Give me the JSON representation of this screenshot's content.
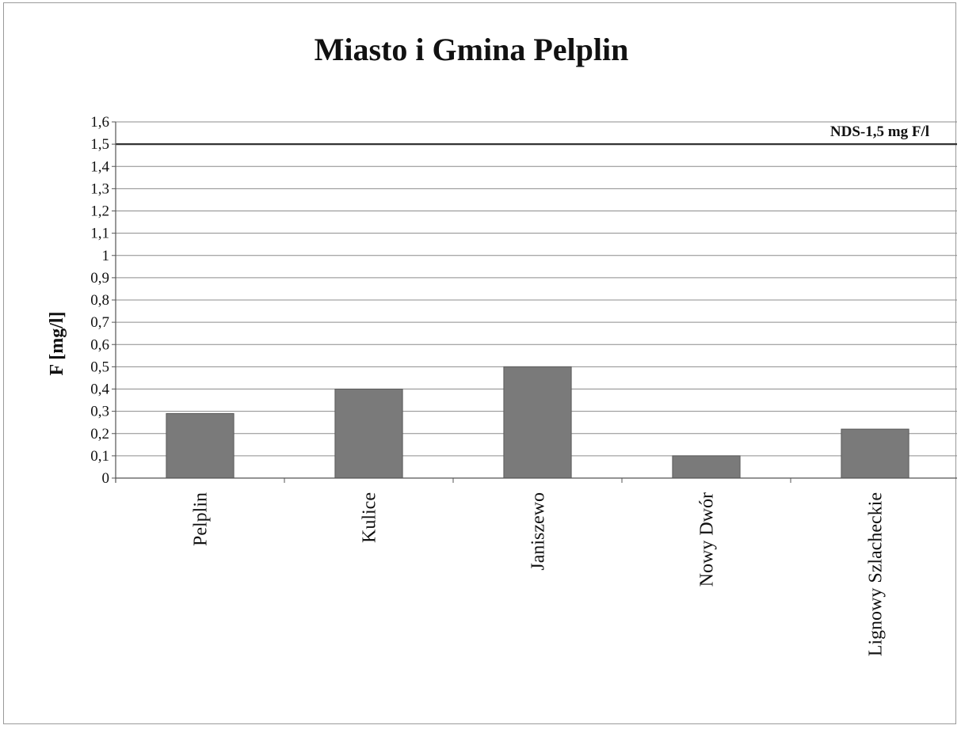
{
  "chart_data": {
    "type": "bar",
    "title": "Miasto i Gmina Pelplin",
    "ylabel": "F [mg/l]",
    "xlabel": "",
    "categories": [
      "Pelplin",
      "Kulice",
      "Janiszewo",
      "Nowy Dwór",
      "Lignowy Szlacheckie"
    ],
    "values": [
      0.29,
      0.4,
      0.5,
      0.1,
      0.22
    ],
    "ylim": [
      0,
      1.6
    ],
    "y_ticks": [
      "0",
      "0,1",
      "0,2",
      "0,3",
      "0,4",
      "0,5",
      "0,6",
      "0,7",
      "0,8",
      "0,9",
      "1",
      "1,1",
      "1,2",
      "1,3",
      "1,4",
      "1,5",
      "1,6"
    ],
    "grid": true,
    "reference_line": {
      "value": 1.5,
      "label": "NDS-1,5 mg F/l"
    },
    "bar_color": "#7a7a7a"
  }
}
